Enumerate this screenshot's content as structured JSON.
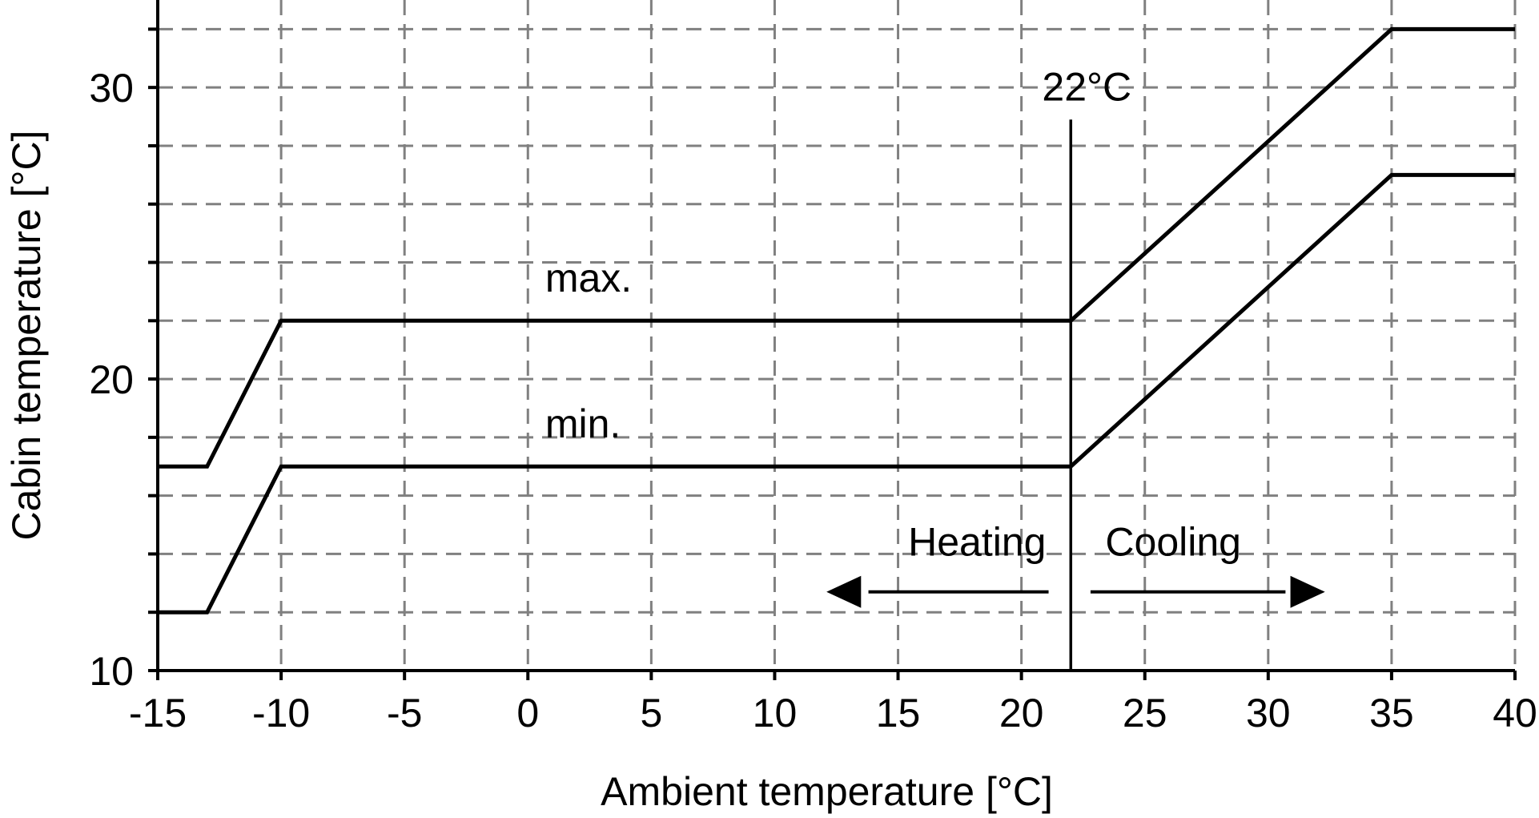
{
  "chart_data": {
    "type": "line",
    "title": "",
    "xlabel": "Ambient temperature [°C]",
    "ylabel": "Cabin temperature [°C]",
    "xlim": [
      -15,
      40
    ],
    "ylim": [
      10,
      33
    ],
    "xticks": [
      -15,
      -10,
      -5,
      0,
      5,
      10,
      15,
      20,
      25,
      30,
      35,
      40
    ],
    "xtick_labels": [
      "-15",
      "-10",
      "-5",
      "0",
      "5",
      "10",
      "15",
      "20",
      "25",
      "30",
      "35",
      "40"
    ],
    "yticks": [
      10,
      20,
      30
    ],
    "ytick_labels": [
      "10",
      "20",
      "30"
    ],
    "ygrid": [
      12,
      14,
      16,
      18,
      20,
      22,
      24,
      26,
      28,
      30,
      32
    ],
    "grid": true,
    "series": [
      {
        "label": "max.",
        "x": [
          -15,
          -13,
          -10,
          22,
          35,
          40
        ],
        "y": [
          17,
          17,
          22,
          22,
          32,
          32
        ]
      },
      {
        "label": "min.",
        "x": [
          -15,
          -13,
          -10,
          22,
          35,
          40
        ],
        "y": [
          12,
          12,
          17,
          17,
          27,
          27
        ]
      }
    ],
    "annotations": {
      "threshold": {
        "x": 22,
        "label": "22°C"
      },
      "heating": {
        "label": "Heating",
        "direction": "left"
      },
      "cooling": {
        "label": "Cooling",
        "direction": "right"
      }
    },
    "colors": {
      "line": "#000000",
      "grid": "#808080"
    }
  }
}
